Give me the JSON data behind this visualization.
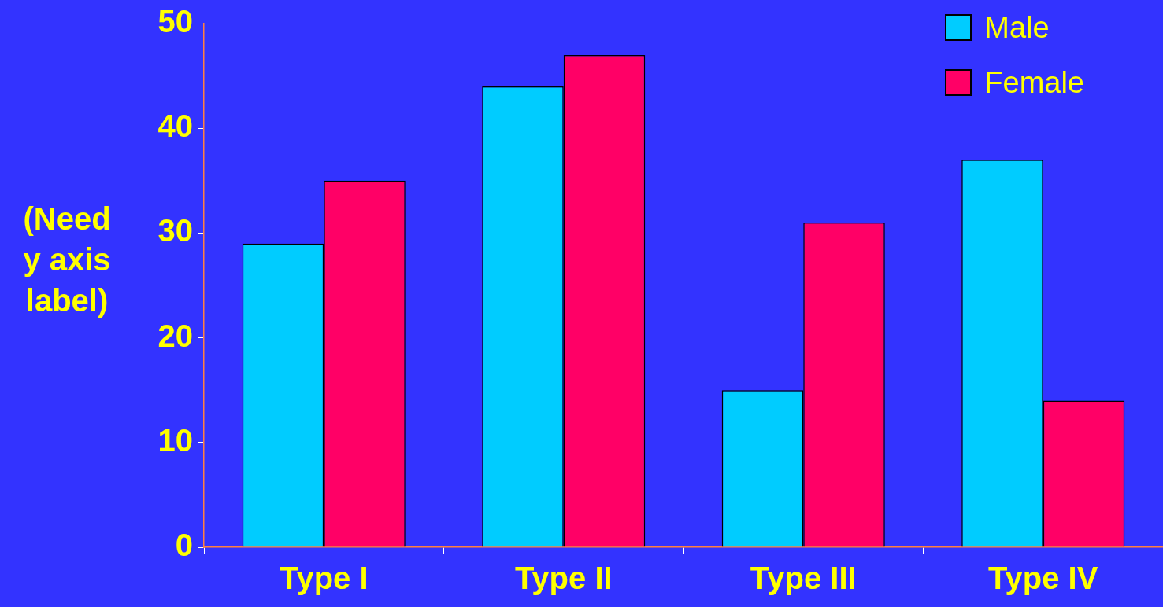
{
  "chart_data": {
    "type": "bar",
    "ylabel": "(Need y axis label)",
    "categories": [
      "Type I",
      "Type II",
      "Type III",
      "Type IV"
    ],
    "series": [
      {
        "name": "Male",
        "color": "#00ccff",
        "values": [
          29,
          44,
          15,
          37
        ]
      },
      {
        "name": "Female",
        "color": "#ff0066",
        "values": [
          35,
          47,
          31,
          14
        ]
      }
    ],
    "ylim": [
      0,
      50
    ],
    "yticks": [
      0,
      10,
      20,
      30,
      40,
      50
    ],
    "grid": false,
    "legend": "top right"
  }
}
